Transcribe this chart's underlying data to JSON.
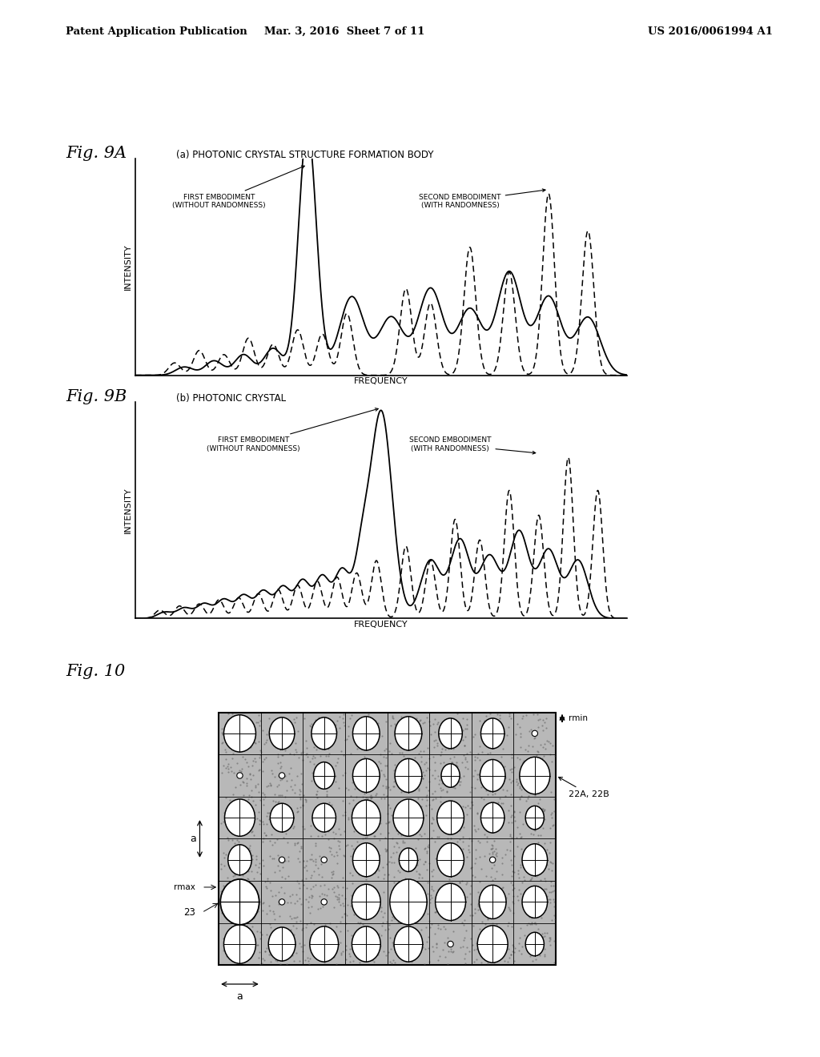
{
  "bg_color": "#ffffff",
  "header_left": "Patent Application Publication",
  "header_mid": "Mar. 3, 2016  Sheet 7 of 11",
  "header_right": "US 2016/0061994 A1",
  "fig9A_label": "Fig. 9A",
  "fig9A_subtitle": "(a) PHOTONIC CRYSTAL STRUCTURE FORMATION BODY",
  "fig9B_label": "Fig. 9B",
  "fig9B_subtitle": "(b) PHOTONIC CRYSTAL",
  "fig10_label": "Fig. 10",
  "ylabel": "INTENSITY",
  "xlabel": "FREQUENCY",
  "grid_rows": 6,
  "grid_cols": 8,
  "gray_color": "#b0b0b0",
  "hatch_color": "#888888"
}
